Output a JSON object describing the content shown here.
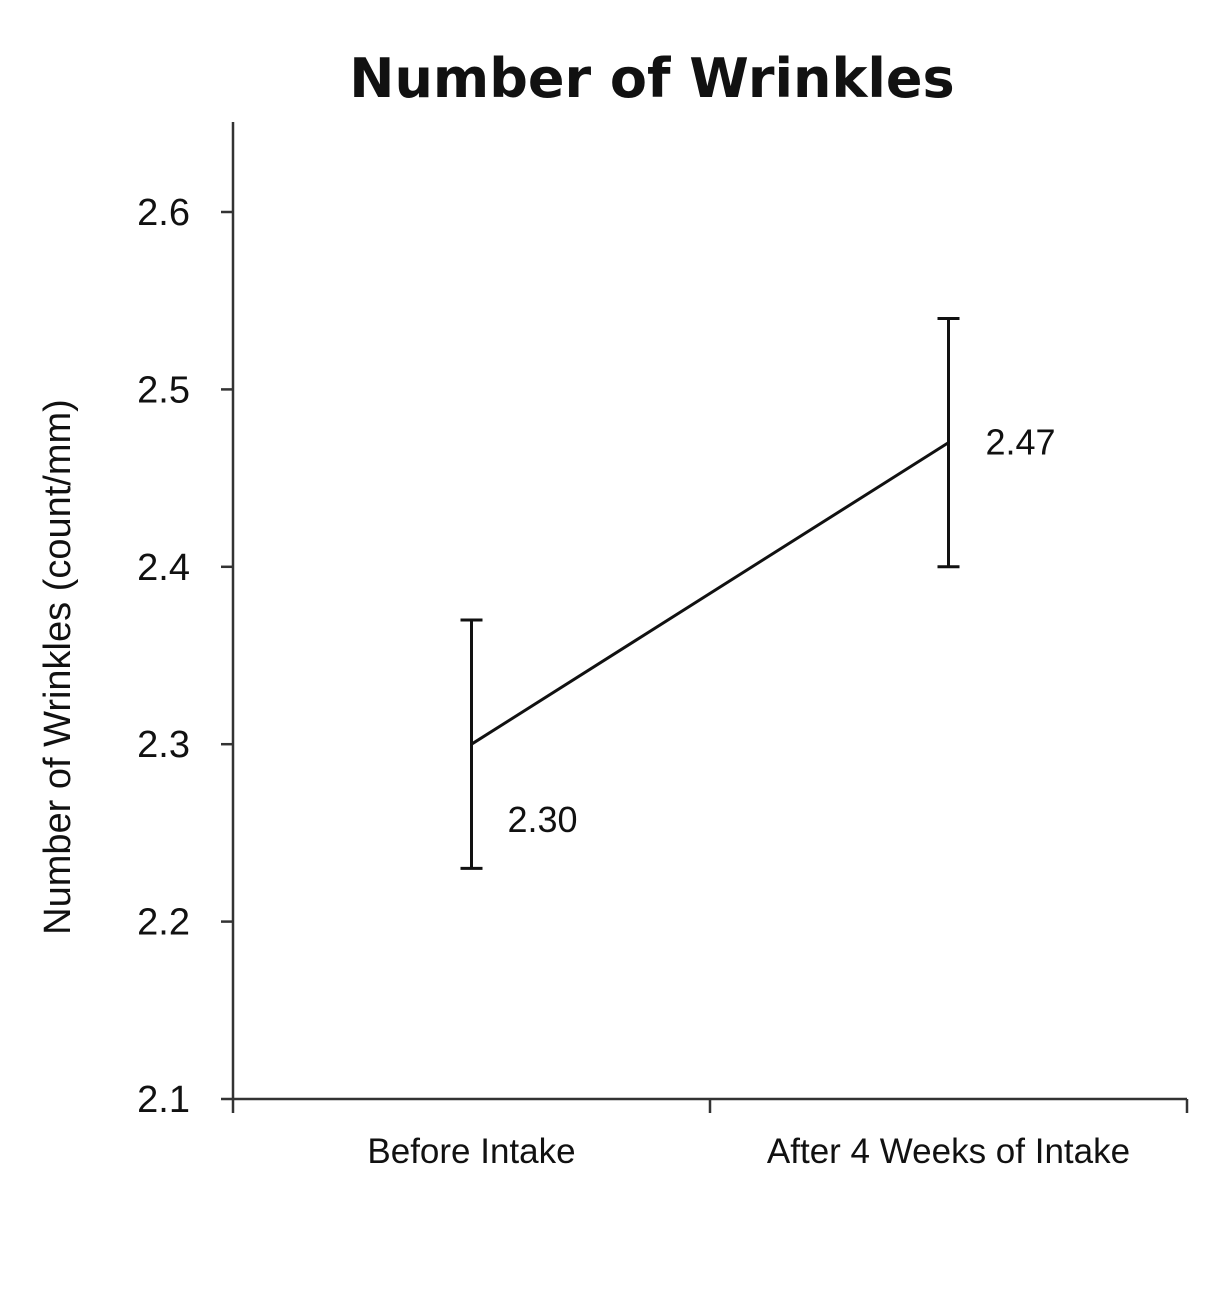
{
  "chart_data": {
    "type": "line",
    "title": "Number of Wrinkles",
    "xlabel": "",
    "ylabel": "Number of Wrinkles (count/mm)",
    "categories": [
      "Before Intake",
      "After 4 Weeks of Intake"
    ],
    "series": [
      {
        "values": [
          2.3,
          2.47
        ],
        "error_low": [
          2.23,
          2.4
        ],
        "error_high": [
          2.37,
          2.54
        ],
        "data_labels": [
          "2.30",
          "2.47"
        ]
      }
    ],
    "ylim": [
      2.1,
      2.65
    ],
    "yticks": [
      2.1,
      2.2,
      2.3,
      2.4,
      2.5,
      2.6
    ],
    "ytick_labels": [
      "2.1",
      "2.2",
      "2.3",
      "2.4",
      "2.5",
      "2.6"
    ],
    "grid": false,
    "legend": "none",
    "colors": {
      "line": "#111111",
      "axis": "#333333",
      "text": "#111111"
    }
  }
}
